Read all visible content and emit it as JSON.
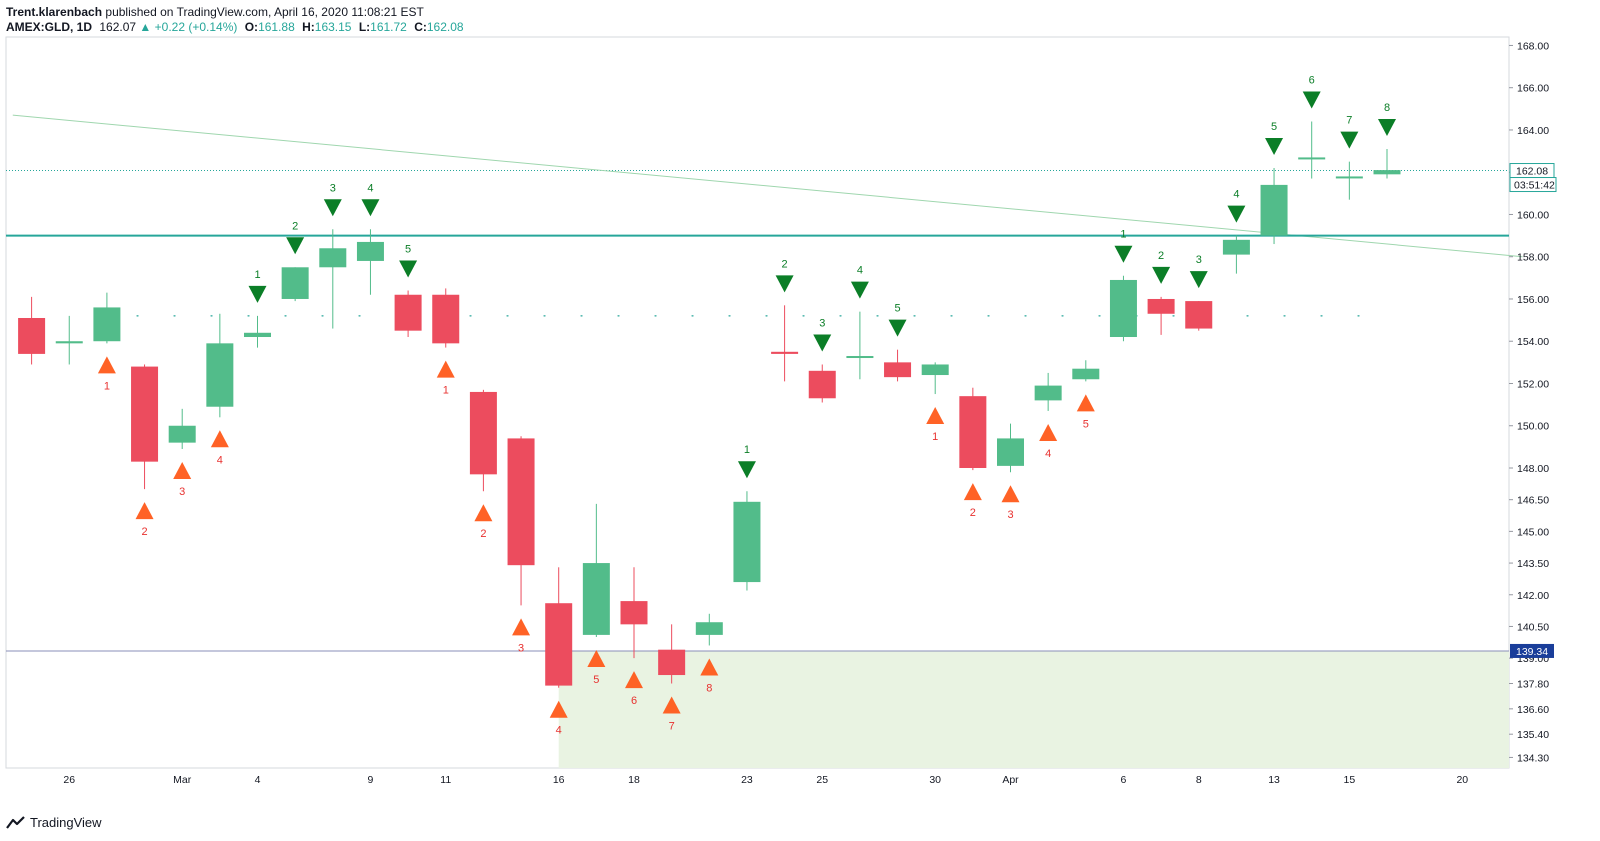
{
  "header": {
    "author": "Trent.klarenbach",
    "published_text": "published on TradingView.com, April 16, 2020 11:08:21 EST",
    "symbol": "AMEX:GLD, 1D",
    "last": "162.07",
    "change": "+0.22 (+0.14%)",
    "o_label": "O:",
    "o_value": "161.88",
    "h_label": "H:",
    "h_value": "163.15",
    "l_label": "L:",
    "l_value": "161.72",
    "c_label": "C:",
    "c_value": "162.08"
  },
  "footer": {
    "brand": "TradingView"
  },
  "colors": {
    "up": "#52bc8a",
    "down": "#ec4c5e",
    "buy_marker": "#ff5a1a",
    "sell_marker": "#0b7e27",
    "hline": "#26a69a",
    "zone": "#e9f3e2"
  },
  "chart_data": {
    "type": "candlestick",
    "ylim": [
      133.8,
      168.4
    ],
    "y_ticks": [
      "168.00",
      "166.00",
      "164.00",
      "162.00",
      "160.00",
      "158.00",
      "156.00",
      "154.00",
      "152.00",
      "150.00",
      "148.00",
      "146.50",
      "145.00",
      "143.50",
      "142.00",
      "140.50",
      "139.00",
      "137.80",
      "136.60",
      "135.40",
      "134.30"
    ],
    "x_ticks": [
      {
        "label": "26",
        "index": 1
      },
      {
        "label": "Mar",
        "index": 4
      },
      {
        "label": "4",
        "index": 6
      },
      {
        "label": "9",
        "index": 9
      },
      {
        "label": "11",
        "index": 11
      },
      {
        "label": "16",
        "index": 14
      },
      {
        "label": "18",
        "index": 16
      },
      {
        "label": "23",
        "index": 19
      },
      {
        "label": "25",
        "index": 21
      },
      {
        "label": "30",
        "index": 24
      },
      {
        "label": "Apr",
        "index": 26
      },
      {
        "label": "6",
        "index": 29
      },
      {
        "label": "8",
        "index": 31
      },
      {
        "label": "13",
        "index": 33
      },
      {
        "label": "15",
        "index": 35
      },
      {
        "label": "20",
        "index": 38
      }
    ],
    "candles": [
      {
        "o": 155.1,
        "h": 156.1,
        "l": 152.9,
        "c": 153.4
      },
      {
        "o": 153.9,
        "h": 155.2,
        "l": 152.9,
        "c": 154.0
      },
      {
        "o": 154.0,
        "h": 156.3,
        "l": 153.9,
        "c": 155.6
      },
      {
        "o": 152.8,
        "h": 152.9,
        "l": 147.0,
        "c": 148.3
      },
      {
        "o": 149.2,
        "h": 150.8,
        "l": 148.9,
        "c": 150.0
      },
      {
        "o": 150.9,
        "h": 155.3,
        "l": 150.4,
        "c": 153.9
      },
      {
        "o": 154.2,
        "h": 155.2,
        "l": 153.7,
        "c": 154.4
      },
      {
        "o": 156.0,
        "h": 157.5,
        "l": 155.9,
        "c": 157.5
      },
      {
        "o": 157.5,
        "h": 159.3,
        "l": 154.6,
        "c": 158.4
      },
      {
        "o": 157.8,
        "h": 159.3,
        "l": 156.2,
        "c": 158.7
      },
      {
        "o": 156.2,
        "h": 156.4,
        "l": 154.2,
        "c": 154.5
      },
      {
        "o": 156.2,
        "h": 156.5,
        "l": 153.7,
        "c": 153.9
      },
      {
        "o": 151.6,
        "h": 151.7,
        "l": 146.9,
        "c": 147.7
      },
      {
        "o": 149.4,
        "h": 149.5,
        "l": 141.5,
        "c": 143.4
      },
      {
        "o": 141.6,
        "h": 143.3,
        "l": 137.6,
        "c": 137.7
      },
      {
        "o": 140.1,
        "h": 146.3,
        "l": 140.0,
        "c": 143.5
      },
      {
        "o": 141.7,
        "h": 143.3,
        "l": 139.0,
        "c": 140.6
      },
      {
        "o": 139.4,
        "h": 140.6,
        "l": 137.8,
        "c": 138.2
      },
      {
        "o": 140.1,
        "h": 141.1,
        "l": 139.6,
        "c": 140.7
      },
      {
        "o": 142.6,
        "h": 146.9,
        "l": 142.2,
        "c": 146.4
      },
      {
        "o": 153.5,
        "h": 155.7,
        "l": 152.1,
        "c": 153.4
      },
      {
        "o": 152.6,
        "h": 152.9,
        "l": 151.1,
        "c": 151.3
      },
      {
        "o": 153.3,
        "h": 155.4,
        "l": 152.2,
        "c": 153.3
      },
      {
        "o": 153.0,
        "h": 153.6,
        "l": 152.1,
        "c": 152.3
      },
      {
        "o": 152.4,
        "h": 153.0,
        "l": 151.5,
        "c": 152.9
      },
      {
        "o": 151.4,
        "h": 151.8,
        "l": 147.9,
        "c": 148.0
      },
      {
        "o": 148.1,
        "h": 150.1,
        "l": 147.8,
        "c": 149.4
      },
      {
        "o": 151.2,
        "h": 152.5,
        "l": 150.7,
        "c": 151.9
      },
      {
        "o": 152.2,
        "h": 153.1,
        "l": 152.1,
        "c": 152.7
      },
      {
        "o": 154.2,
        "h": 157.1,
        "l": 154.0,
        "c": 156.9
      },
      {
        "o": 156.0,
        "h": 156.1,
        "l": 154.3,
        "c": 155.3
      },
      {
        "o": 155.9,
        "h": 155.9,
        "l": 154.5,
        "c": 154.6
      },
      {
        "o": 158.1,
        "h": 159.0,
        "l": 157.2,
        "c": 158.8
      },
      {
        "o": 159.0,
        "h": 162.2,
        "l": 158.6,
        "c": 161.4
      },
      {
        "o": 162.7,
        "h": 164.4,
        "l": 161.7,
        "c": 162.7
      },
      {
        "o": 161.8,
        "h": 162.5,
        "l": 160.7,
        "c": 161.8
      },
      {
        "o": 161.9,
        "h": 163.1,
        "l": 161.7,
        "c": 162.1
      }
    ],
    "buy_setup": [
      {
        "i": 2,
        "label": "1"
      },
      {
        "i": 3,
        "label": "2"
      },
      {
        "i": 4,
        "label": "3"
      },
      {
        "i": 5,
        "label": "4"
      },
      {
        "i": 11,
        "label": "1"
      },
      {
        "i": 12,
        "label": "2"
      },
      {
        "i": 13,
        "label": "3"
      },
      {
        "i": 14,
        "label": "4"
      },
      {
        "i": 15,
        "label": "5"
      },
      {
        "i": 16,
        "label": "6"
      },
      {
        "i": 17,
        "label": "7"
      },
      {
        "i": 18,
        "label": "8"
      },
      {
        "i": 24,
        "label": "1"
      },
      {
        "i": 25,
        "label": "2"
      },
      {
        "i": 26,
        "label": "3"
      },
      {
        "i": 27,
        "label": "4"
      },
      {
        "i": 28,
        "label": "5"
      }
    ],
    "sell_setup": [
      {
        "i": 6,
        "label": "1"
      },
      {
        "i": 7,
        "label": "2"
      },
      {
        "i": 8,
        "label": "3"
      },
      {
        "i": 9,
        "label": "4"
      },
      {
        "i": 10,
        "label": "5"
      },
      {
        "i": 19,
        "label": "1"
      },
      {
        "i": 20,
        "label": "2"
      },
      {
        "i": 21,
        "label": "3"
      },
      {
        "i": 22,
        "label": "4"
      },
      {
        "i": 23,
        "label": "5"
      },
      {
        "i": 29,
        "label": "1"
      },
      {
        "i": 30,
        "label": "2"
      },
      {
        "i": 31,
        "label": "3"
      },
      {
        "i": 32,
        "label": "4"
      },
      {
        "i": 33,
        "label": "5"
      },
      {
        "i": 34,
        "label": "6"
      },
      {
        "i": 35,
        "label": "7"
      },
      {
        "i": 36,
        "label": "8"
      }
    ],
    "resistance_level": 159.0,
    "support_level": 139.34,
    "support_label": "139.34",
    "last_price": 162.08,
    "last_price_label": "162.08",
    "countdown": "03:51:42",
    "dotted_level": 155.2,
    "trendline": [
      {
        "i": -0.5,
        "v": 164.7
      },
      {
        "i": 39.6,
        "v": 158.0
      }
    ],
    "zone": {
      "from_i": 14,
      "top": 139.34
    }
  }
}
